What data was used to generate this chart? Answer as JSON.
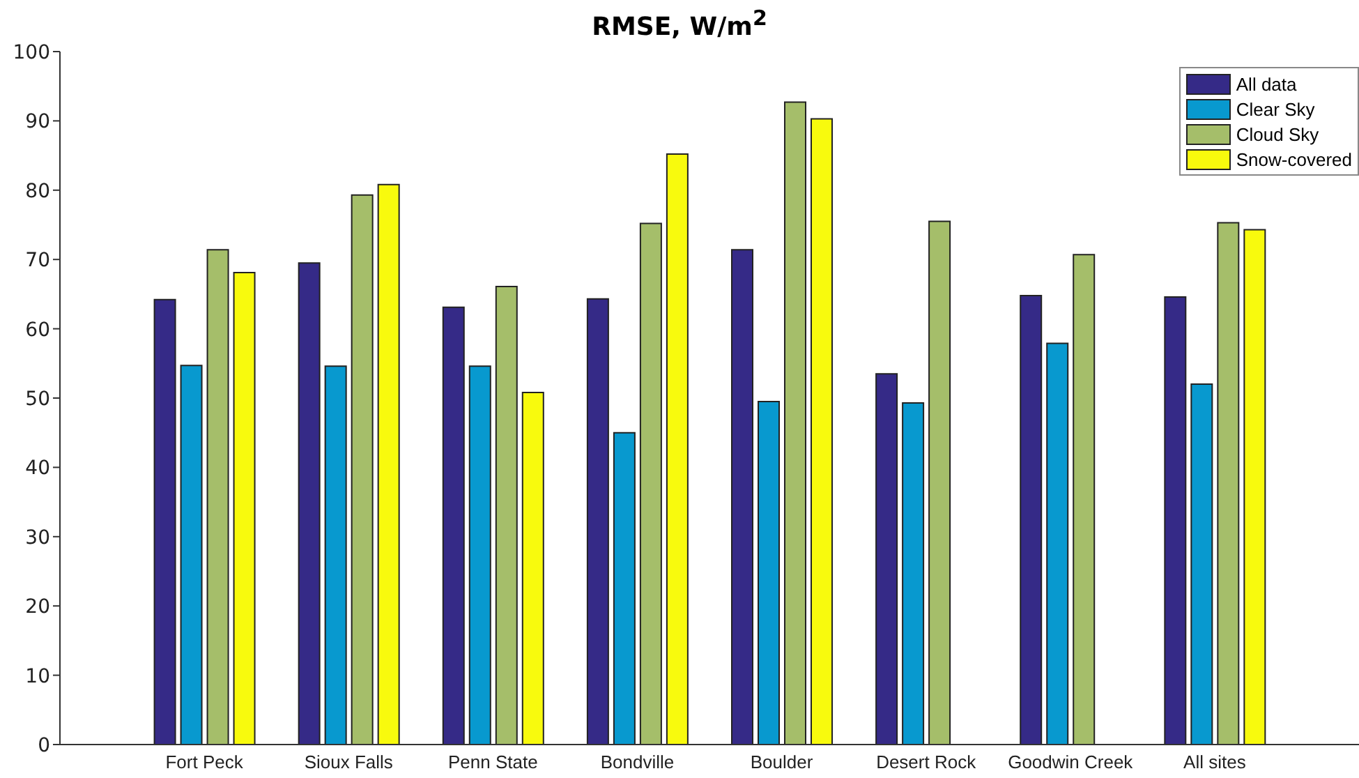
{
  "chart_data": {
    "type": "bar",
    "title": "RMSE, W/m$^{2}$",
    "categories": [
      "Fort Peck",
      "Sioux Falls",
      "Penn State",
      "Bondville",
      "Boulder",
      "Desert Rock",
      "Goodwin Creek",
      "All sites"
    ],
    "series": [
      {
        "name": "All data",
        "color": "#352a87",
        "values": [
          64.2,
          69.5,
          63.1,
          64.3,
          71.4,
          53.5,
          64.8,
          64.6
        ]
      },
      {
        "name": "Clear Sky",
        "color": "#0899cf",
        "values": [
          54.7,
          54.6,
          54.6,
          45.0,
          49.5,
          49.3,
          57.9,
          52.0
        ]
      },
      {
        "name": "Cloud Sky",
        "color": "#a5be6a",
        "values": [
          71.4,
          79.3,
          66.1,
          75.2,
          92.7,
          75.5,
          70.7,
          75.3
        ]
      },
      {
        "name": "Snow-covered",
        "color": "#f8fa0d",
        "values": [
          68.1,
          80.8,
          50.8,
          85.2,
          90.3,
          null,
          null,
          74.3
        ]
      }
    ],
    "ylim": [
      0,
      100
    ],
    "yticks": [
      0,
      10,
      20,
      30,
      40,
      50,
      60,
      70,
      80,
      90,
      100
    ],
    "grid": false,
    "legend": "top right"
  }
}
